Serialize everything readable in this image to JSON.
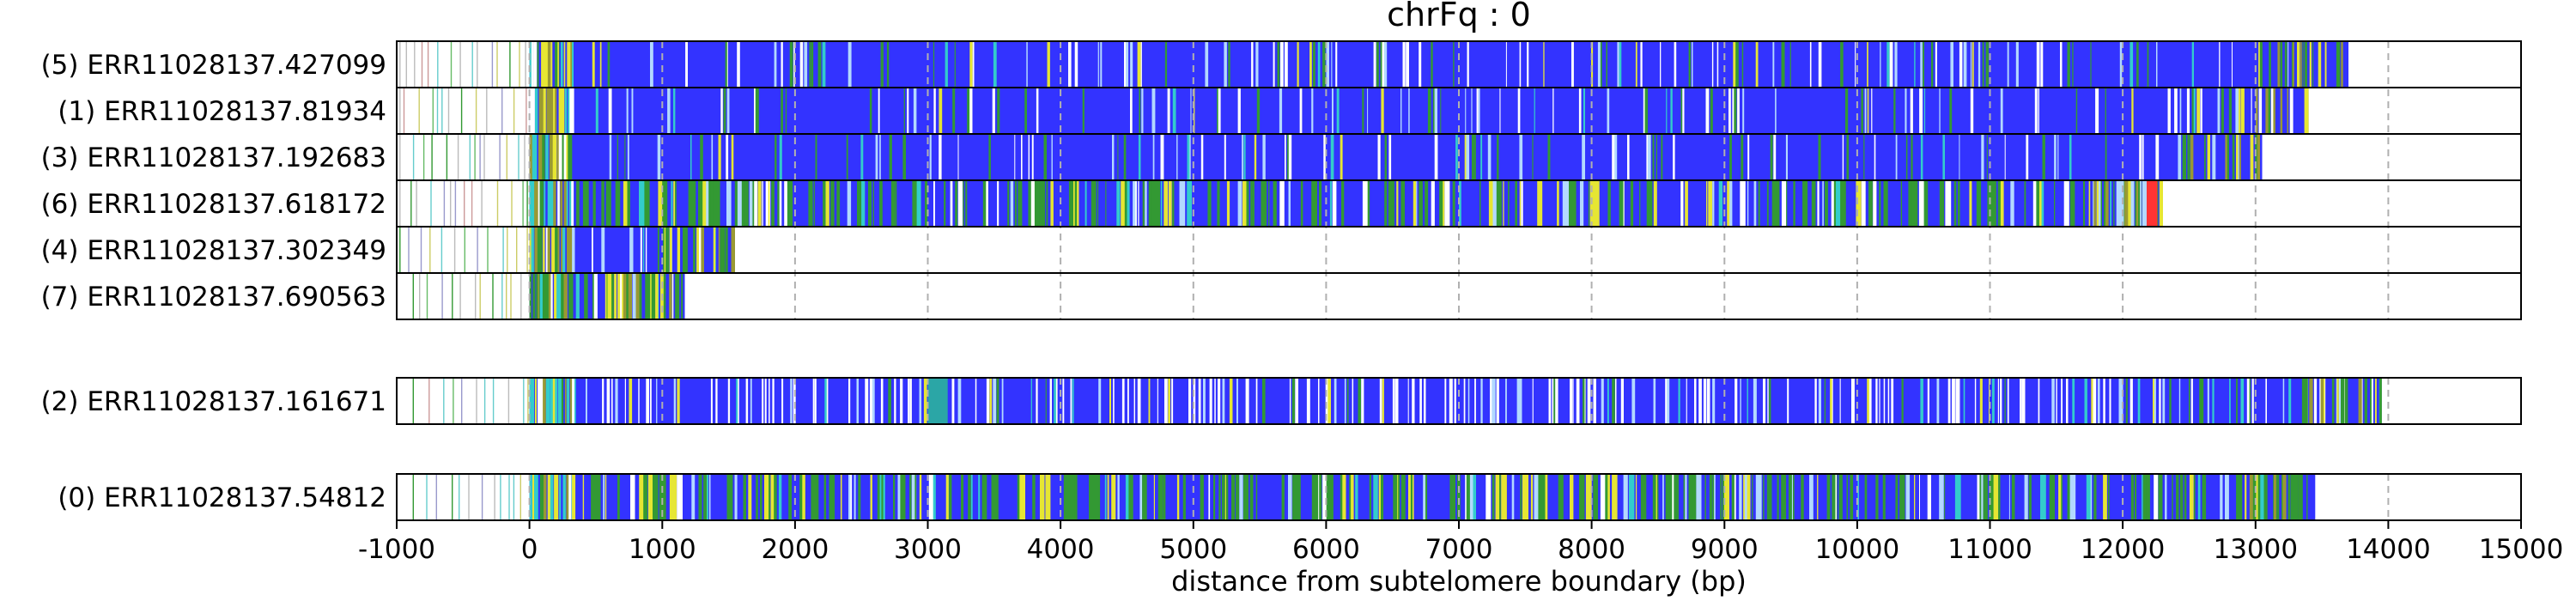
{
  "chart_data": {
    "type": "bar",
    "title": "chrFq : 0",
    "xlabel": "distance from subtelomere boundary (bp)",
    "ylabel": "",
    "xlim": [
      -1000,
      15000
    ],
    "xticks": [
      -1000,
      0,
      1000,
      2000,
      3000,
      4000,
      5000,
      6000,
      7000,
      8000,
      9000,
      10000,
      11000,
      12000,
      13000,
      14000,
      15000
    ],
    "grid": "x, dashed, gray",
    "colors": {
      "main": "#3333ff",
      "green": "#339933",
      "yellow": "#e6e633",
      "cyan": "#33cccc",
      "white": "#ffffff",
      "light_blue": "#b3d9ff",
      "olive": "#999933",
      "red": "#ff3333",
      "teal": "#2ba6a6"
    },
    "groups": [
      {
        "reads": [
          {
            "label": "(5) ERR11028137.427099",
            "start": -1000,
            "end": 13700,
            "repeat_start": 0,
            "variability": "low"
          },
          {
            "label": "(1) ERR11028137.81934",
            "start": -1000,
            "end": 13400,
            "repeat_start": 0,
            "variability": "low"
          },
          {
            "label": "(3) ERR11028137.192683",
            "start": -1000,
            "end": 13050,
            "repeat_start": 0,
            "variability": "low"
          },
          {
            "label": "(6) ERR11028137.618172",
            "start": -1000,
            "end": 12300,
            "repeat_start": 0,
            "variability": "high",
            "red_segment": [
              12180,
              12260
            ]
          },
          {
            "label": "(4) ERR11028137.302349",
            "start": -1000,
            "end": 1550,
            "repeat_start": 0,
            "variability": "medium"
          },
          {
            "label": "(7) ERR11028137.690563",
            "start": -900,
            "end": 1170,
            "repeat_start": 0,
            "variability": "high"
          }
        ]
      },
      {
        "reads": [
          {
            "label": "(2) ERR11028137.161671",
            "start": -900,
            "end": 13950,
            "repeat_start": 0,
            "variability": "white_stripes",
            "teal_segment": [
              3000,
              3150
            ]
          }
        ]
      },
      {
        "reads": [
          {
            "label": "(0) ERR11028137.54812",
            "start": -900,
            "end": 13450,
            "repeat_start": 0,
            "variability": "high"
          }
        ]
      }
    ]
  }
}
